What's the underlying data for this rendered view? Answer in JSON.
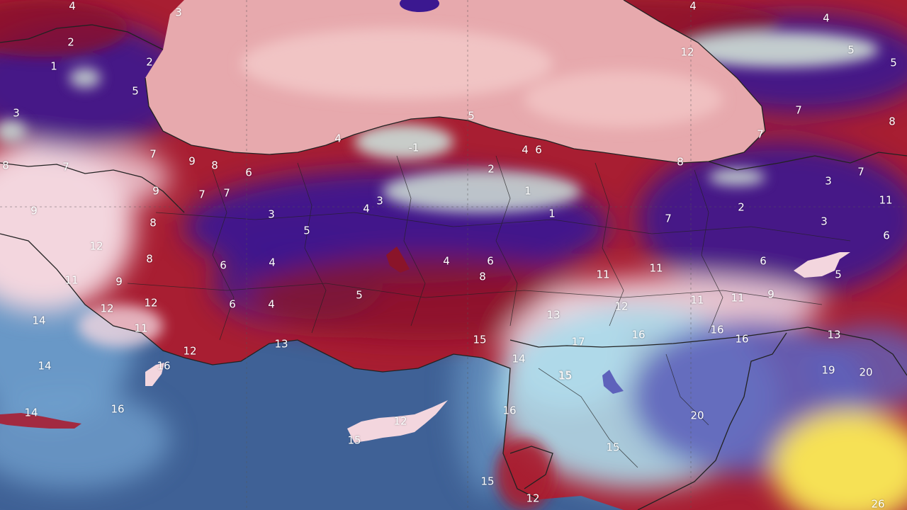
{
  "map": {
    "colors": {
      "sea_black": "#e7a9ad",
      "sea_black_light": "#f2c6c6",
      "sea_med": "#3f6196",
      "sea_med_light": "#6f9fcc",
      "land_dark_red": "#8a1429",
      "land_red": "#a81e32",
      "land_purple": "#3b1890",
      "land_pink": "#f3d6de",
      "land_cold": "#c9d6d2",
      "land_cyan": "#a8dcec",
      "land_blue": "#5e62bb",
      "land_yellow": "#f6e154",
      "border": "#222222"
    },
    "temperature_labels": [
      {
        "value": "4"
      },
      {
        "value": "3"
      },
      {
        "value": "2"
      },
      {
        "value": "1"
      },
      {
        "value": "2"
      },
      {
        "value": "5"
      },
      {
        "value": "3"
      },
      {
        "value": "7"
      },
      {
        "value": "9"
      },
      {
        "value": "8"
      },
      {
        "value": "6"
      },
      {
        "value": "7"
      },
      {
        "value": "7"
      },
      {
        "value": "9"
      },
      {
        "value": "7"
      },
      {
        "value": "8"
      },
      {
        "value": "9"
      },
      {
        "value": "8"
      },
      {
        "value": "12"
      },
      {
        "value": "8"
      },
      {
        "value": "11"
      },
      {
        "value": "9"
      },
      {
        "value": "12"
      },
      {
        "value": "12"
      },
      {
        "value": "11"
      },
      {
        "value": "12"
      },
      {
        "value": "16"
      },
      {
        "value": "14"
      },
      {
        "value": "14"
      },
      {
        "value": "14"
      },
      {
        "value": "16"
      },
      {
        "value": "3"
      },
      {
        "value": "5"
      },
      {
        "value": "6"
      },
      {
        "value": "4"
      },
      {
        "value": "6"
      },
      {
        "value": "4"
      },
      {
        "value": "5"
      },
      {
        "value": "13"
      },
      {
        "value": "4"
      },
      {
        "value": "3"
      },
      {
        "value": "5"
      },
      {
        "value": "4"
      },
      {
        "value": "-1"
      },
      {
        "value": "2"
      },
      {
        "value": "1"
      },
      {
        "value": "1"
      },
      {
        "value": "4"
      },
      {
        "value": "6"
      },
      {
        "value": "4"
      },
      {
        "value": "6"
      },
      {
        "value": "8"
      },
      {
        "value": "15"
      },
      {
        "value": "14"
      },
      {
        "value": "16"
      },
      {
        "value": "15"
      },
      {
        "value": "12"
      },
      {
        "value": "15"
      },
      {
        "value": "15"
      },
      {
        "value": "12"
      },
      {
        "value": "4"
      },
      {
        "value": "4"
      },
      {
        "value": "12"
      },
      {
        "value": "5"
      },
      {
        "value": "5"
      },
      {
        "value": "7"
      },
      {
        "value": "7"
      },
      {
        "value": "8"
      },
      {
        "value": "8"
      },
      {
        "value": "7"
      },
      {
        "value": "3"
      },
      {
        "value": "2"
      },
      {
        "value": "3"
      },
      {
        "value": "11"
      },
      {
        "value": "6"
      },
      {
        "value": "7"
      },
      {
        "value": "11"
      },
      {
        "value": "6"
      },
      {
        "value": "5"
      },
      {
        "value": "11"
      },
      {
        "value": "11"
      },
      {
        "value": "11"
      },
      {
        "value": "9"
      },
      {
        "value": "13"
      },
      {
        "value": "12"
      },
      {
        "value": "16"
      },
      {
        "value": "16"
      },
      {
        "value": "16"
      },
      {
        "value": "13"
      },
      {
        "value": "17"
      },
      {
        "value": "15"
      },
      {
        "value": "19"
      },
      {
        "value": "20"
      },
      {
        "value": "20"
      },
      {
        "value": "15"
      },
      {
        "value": "26"
      }
    ]
  }
}
